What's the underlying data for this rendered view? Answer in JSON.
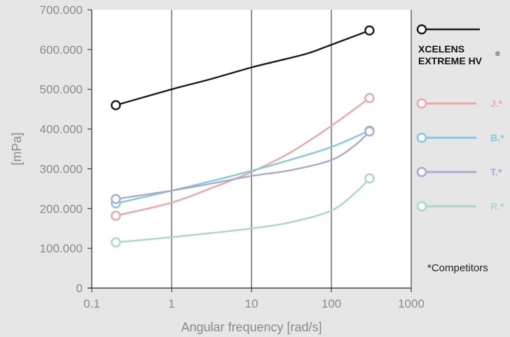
{
  "chart_data": {
    "type": "line",
    "title": "",
    "xlabel": "Angular frequency [rad/s]",
    "ylabel": "[mPa]",
    "x_scale": "log",
    "xlim": [
      0.1,
      1000
    ],
    "ylim": [
      0,
      700000
    ],
    "x_ticks": [
      0.1,
      1,
      10,
      100,
      1000
    ],
    "x_tick_labels": [
      "0.1",
      "1",
      "10",
      "100",
      "1000"
    ],
    "y_ticks": [
      0,
      100000,
      200000,
      300000,
      400000,
      500000,
      600000,
      700000
    ],
    "y_tick_labels": [
      "0",
      "100.000",
      "200.000",
      "300.000",
      "400.000",
      "500.000",
      "600.000",
      "700.000"
    ],
    "grid": "vertical",
    "legend_position": "right",
    "series": [
      {
        "name": "XCELENS EXTREME HV",
        "name_lines": [
          "XCELENS",
          "EXTREME HV"
        ],
        "registered": "®",
        "color": "#1a1a1a",
        "x": [
          0.2,
          300
        ],
        "y": [
          460000,
          648000
        ],
        "curve": [
          [
            0.2,
            460000
          ],
          [
            1,
            500000
          ],
          [
            3,
            525000
          ],
          [
            10,
            555000
          ],
          [
            20,
            570000
          ],
          [
            50,
            590000
          ],
          [
            100,
            612000
          ],
          [
            300,
            648000
          ]
        ]
      },
      {
        "name": "J.*",
        "color": "#eca8a8",
        "x": [
          0.2,
          300
        ],
        "y": [
          182000,
          478000
        ],
        "curve": [
          [
            0.2,
            182000
          ],
          [
            1,
            215000
          ],
          [
            3,
            250000
          ],
          [
            10,
            292000
          ],
          [
            30,
            340000
          ],
          [
            100,
            408000
          ],
          [
            300,
            478000
          ]
        ]
      },
      {
        "name": "B.*",
        "color": "#7fcbe0",
        "x": [
          0.2,
          300
        ],
        "y": [
          213000,
          396000
        ],
        "curve": [
          [
            0.2,
            213000
          ],
          [
            1,
            245000
          ],
          [
            3,
            268000
          ],
          [
            10,
            295000
          ],
          [
            30,
            322000
          ],
          [
            100,
            355000
          ],
          [
            300,
            396000
          ]
        ]
      },
      {
        "name": "T.*",
        "color": "#a9a9d3",
        "x": [
          0.2,
          300
        ],
        "y": [
          224000,
          394000
        ],
        "curve": [
          [
            0.2,
            224000
          ],
          [
            1,
            245000
          ],
          [
            3,
            262000
          ],
          [
            10,
            282000
          ],
          [
            30,
            296000
          ],
          [
            100,
            322000
          ],
          [
            200,
            360000
          ],
          [
            300,
            394000
          ]
        ]
      },
      {
        "name": "R.*",
        "color": "#a8d9c6",
        "x": [
          0.2,
          300
        ],
        "y": [
          115000,
          276000
        ],
        "curve": [
          [
            0.2,
            115000
          ],
          [
            1,
            128000
          ],
          [
            3,
            138000
          ],
          [
            10,
            150000
          ],
          [
            30,
            165000
          ],
          [
            100,
            195000
          ],
          [
            200,
            240000
          ],
          [
            300,
            276000
          ]
        ]
      }
    ],
    "footnote": "*Competitors"
  }
}
